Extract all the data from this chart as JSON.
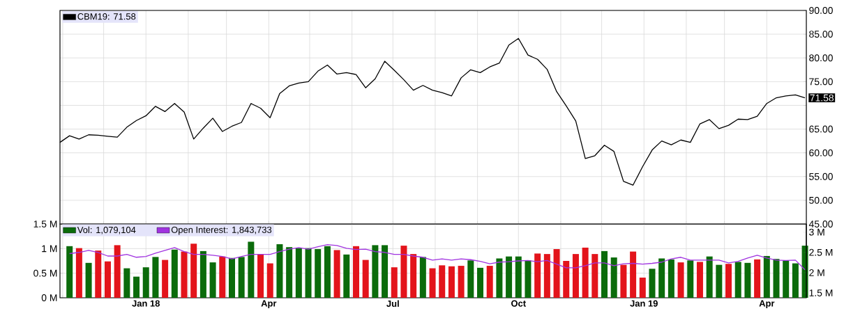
{
  "chart_data": [
    {
      "type": "line",
      "x": [
        "2017-10-30",
        "2017-11-06",
        "2017-11-13",
        "2017-11-20",
        "2017-11-27",
        "2017-12-04",
        "2017-12-11",
        "2017-12-18",
        "2017-12-25",
        "2018-01-01",
        "2018-01-08",
        "2018-01-15",
        "2018-01-22",
        "2018-01-29",
        "2018-02-05",
        "2018-02-12",
        "2018-02-19",
        "2018-02-26",
        "2018-03-05",
        "2018-03-12",
        "2018-03-19",
        "2018-03-26",
        "2018-04-02",
        "2018-04-09",
        "2018-04-16",
        "2018-04-23",
        "2018-04-30",
        "2018-05-07",
        "2018-05-14",
        "2018-05-21",
        "2018-05-28",
        "2018-06-04",
        "2018-06-11",
        "2018-06-18",
        "2018-06-25",
        "2018-07-02",
        "2018-07-09",
        "2018-07-16",
        "2018-07-23",
        "2018-07-30",
        "2018-08-06",
        "2018-08-13",
        "2018-08-20",
        "2018-08-27",
        "2018-09-03",
        "2018-09-10",
        "2018-09-17",
        "2018-09-24",
        "2018-10-01",
        "2018-10-08",
        "2018-10-15",
        "2018-10-22",
        "2018-10-29",
        "2018-11-05",
        "2018-11-12",
        "2018-11-19",
        "2018-11-26",
        "2018-12-03",
        "2018-12-10",
        "2018-12-17",
        "2018-12-24",
        "2018-12-31",
        "2019-01-07",
        "2019-01-14",
        "2019-01-21",
        "2019-01-28",
        "2019-02-04",
        "2019-02-11",
        "2019-02-18",
        "2019-02-25",
        "2019-03-04",
        "2019-03-11",
        "2019-03-18",
        "2019-03-25",
        "2019-04-01",
        "2019-04-08",
        "2019-04-15",
        "2019-04-22",
        "2019-04-29"
      ],
      "series": [
        {
          "name": "CBM19: 71.58",
          "color": "#000000",
          "values": [
            62.2,
            63.6,
            62.9,
            63.8,
            63.7,
            63.5,
            63.3,
            65.4,
            66.8,
            67.8,
            69.8,
            68.7,
            70.4,
            68.6,
            62.9,
            65.2,
            67.3,
            64.5,
            65.6,
            66.4,
            70.4,
            69.4,
            67.4,
            72.5,
            74.1,
            74.7,
            75.0,
            77.2,
            78.5,
            76.6,
            76.9,
            76.5,
            73.7,
            75.6,
            79.3,
            77.4,
            75.4,
            73.2,
            74.2,
            73.2,
            72.7,
            72.0,
            75.8,
            77.5,
            76.9,
            78.1,
            78.9,
            82.7,
            84.1,
            80.6,
            79.7,
            77.6,
            72.9,
            69.9,
            66.7,
            58.8,
            59.4,
            61.6,
            60.3,
            54.0,
            53.2,
            57.1,
            60.6,
            62.5,
            61.7,
            62.7,
            62.2,
            66.1,
            67.0,
            65.1,
            65.8,
            67.1,
            67.0,
            67.7,
            70.4,
            71.6,
            72.0,
            72.2,
            71.58
          ]
        }
      ],
      "xlim": [
        "2017-10-30",
        "2019-04-30"
      ],
      "xticks": [
        {
          "value": "2017-11-01",
          "label": null
        },
        {
          "value": "2017-12-01",
          "label": null
        },
        {
          "value": "2018-01-01",
          "label": null
        },
        {
          "value": "2018-02-01",
          "label": null
        },
        {
          "value": "2018-03-01",
          "label": null
        },
        {
          "value": "2018-04-01",
          "label": null
        },
        {
          "value": "2018-05-01",
          "label": null
        },
        {
          "value": "2018-06-01",
          "label": null
        },
        {
          "value": "2018-07-01",
          "label": null
        },
        {
          "value": "2018-08-01",
          "label": null
        },
        {
          "value": "2018-09-01",
          "label": null
        },
        {
          "value": "2018-10-01",
          "label": null
        },
        {
          "value": "2018-11-01",
          "label": null
        },
        {
          "value": "2018-12-01",
          "label": null
        },
        {
          "value": "2019-01-01",
          "label": null
        },
        {
          "value": "2019-02-01",
          "label": null
        },
        {
          "value": "2019-03-01",
          "label": null
        },
        {
          "value": "2019-04-01",
          "label": null
        }
      ],
      "ylim": [
        45,
        90
      ],
      "yticks": [
        {
          "value": 45,
          "label": "45.00"
        },
        {
          "value": 50,
          "label": "50.00"
        },
        {
          "value": 55,
          "label": "55.00"
        },
        {
          "value": 60,
          "label": "60.00"
        },
        {
          "value": 65,
          "label": "65.00"
        },
        {
          "value": 70,
          "label": null
        },
        {
          "value": 75,
          "label": "75.00"
        },
        {
          "value": 80,
          "label": "80.00"
        },
        {
          "value": 85,
          "label": "85.00"
        },
        {
          "value": 90,
          "label": "90.00"
        }
      ],
      "tick_labels": "y",
      "grid": true,
      "legend": "top left",
      "annotations": [
        {
          "text": "71.58",
          "x": "2019-04-29",
          "y": 71.58
        }
      ]
    },
    {
      "type": "bar",
      "x": [
        "2017-11-06",
        "2017-11-13",
        "2017-11-20",
        "2017-11-27",
        "2017-12-04",
        "2017-12-11",
        "2017-12-18",
        "2017-12-25",
        "2018-01-01",
        "2018-01-08",
        "2018-01-15",
        "2018-01-22",
        "2018-01-29",
        "2018-02-05",
        "2018-02-12",
        "2018-02-19",
        "2018-02-26",
        "2018-03-05",
        "2018-03-12",
        "2018-03-19",
        "2018-03-26",
        "2018-04-02",
        "2018-04-09",
        "2018-04-16",
        "2018-04-23",
        "2018-04-30",
        "2018-05-07",
        "2018-05-14",
        "2018-05-21",
        "2018-05-28",
        "2018-06-04",
        "2018-06-11",
        "2018-06-18",
        "2018-06-25",
        "2018-07-02",
        "2018-07-09",
        "2018-07-16",
        "2018-07-23",
        "2018-07-30",
        "2018-08-06",
        "2018-08-13",
        "2018-08-20",
        "2018-08-27",
        "2018-09-03",
        "2018-09-10",
        "2018-09-17",
        "2018-09-24",
        "2018-10-01",
        "2018-10-08",
        "2018-10-15",
        "2018-10-22",
        "2018-10-29",
        "2018-11-05",
        "2018-11-12",
        "2018-11-19",
        "2018-11-26",
        "2018-12-03",
        "2018-12-10",
        "2018-12-17",
        "2018-12-24",
        "2018-12-31",
        "2019-01-07",
        "2019-01-14",
        "2019-01-21",
        "2019-01-28",
        "2019-02-04",
        "2019-02-11",
        "2019-02-18",
        "2019-02-25",
        "2019-03-04",
        "2019-03-11",
        "2019-03-18",
        "2019-03-25",
        "2019-04-01",
        "2019-04-08",
        "2019-04-15",
        "2019-04-22",
        "2019-04-29"
      ],
      "series": [
        {
          "name": "Vol: 1,079,104",
          "type": "bar",
          "color": "#0b6b0b",
          "values": [
            1.05,
            1.01,
            0.71,
            0.96,
            0.74,
            1.07,
            0.6,
            0.43,
            0.62,
            0.83,
            0.77,
            0.98,
            0.94,
            1.1,
            0.95,
            0.72,
            0.84,
            0.81,
            0.83,
            1.14,
            0.89,
            0.7,
            1.09,
            1.03,
            1.01,
            1.01,
            0.99,
            1.05,
            0.97,
            0.88,
            1.05,
            0.77,
            1.07,
            1.07,
            0.62,
            1.06,
            0.89,
            0.83,
            0.6,
            0.66,
            0.64,
            0.65,
            0.76,
            0.61,
            0.65,
            0.8,
            0.84,
            0.84,
            0.76,
            0.9,
            0.89,
            0.99,
            0.75,
            0.89,
            1.02,
            0.89,
            0.95,
            0.82,
            0.67,
            0.94,
            0.41,
            0.59,
            0.8,
            0.78,
            0.72,
            0.76,
            0.73,
            0.84,
            0.67,
            0.69,
            0.73,
            0.71,
            0.78,
            0.85,
            0.79,
            0.76,
            0.7,
            1.06
          ],
          "colors": [
            "#0b6b0b",
            "#e3141b",
            "#0b6b0b",
            "#e3141b",
            "#e3141b",
            "#e3141b",
            "#0b6b0b",
            "#0b6b0b",
            "#0b6b0b",
            "#0b6b0b",
            "#e3141b",
            "#0b6b0b",
            "#e3141b",
            "#e3141b",
            "#0b6b0b",
            "#0b6b0b",
            "#e3141b",
            "#0b6b0b",
            "#0b6b0b",
            "#0b6b0b",
            "#e3141b",
            "#e3141b",
            "#0b6b0b",
            "#0b6b0b",
            "#0b6b0b",
            "#0b6b0b",
            "#0b6b0b",
            "#0b6b0b",
            "#e3141b",
            "#0b6b0b",
            "#e3141b",
            "#e3141b",
            "#0b6b0b",
            "#0b6b0b",
            "#e3141b",
            "#e3141b",
            "#e3141b",
            "#0b6b0b",
            "#e3141b",
            "#e3141b",
            "#e3141b",
            "#e3141b",
            "#0b6b0b",
            "#0b6b0b",
            "#e3141b",
            "#0b6b0b",
            "#0b6b0b",
            "#0b6b0b",
            "#0b6b0b",
            "#e3141b",
            "#e3141b",
            "#e3141b",
            "#e3141b",
            "#e3141b",
            "#e3141b",
            "#e3141b",
            "#0b6b0b",
            "#0b6b0b",
            "#e3141b",
            "#e3141b",
            "#e3141b",
            "#0b6b0b",
            "#0b6b0b",
            "#0b6b0b",
            "#e3141b",
            "#0b6b0b",
            "#e3141b",
            "#0b6b0b",
            "#0b6b0b",
            "#e3141b",
            "#0b6b0b",
            "#0b6b0b",
            "#e3141b",
            "#0b6b0b",
            "#0b6b0b",
            "#0b6b0b",
            "#0b6b0b",
            "#0b6b0b"
          ]
        },
        {
          "name": "Open Interest: 1,843,733",
          "type": "line",
          "axis": "y2",
          "color": "#a033e0",
          "values": [
            2.47,
            2.5,
            2.55,
            2.5,
            2.41,
            2.41,
            2.45,
            2.38,
            2.4,
            2.48,
            2.55,
            2.62,
            2.52,
            2.45,
            2.45,
            2.43,
            2.4,
            2.34,
            2.4,
            2.45,
            2.45,
            2.45,
            2.52,
            2.58,
            2.62,
            2.58,
            2.64,
            2.69,
            2.67,
            2.6,
            2.57,
            2.58,
            2.52,
            2.5,
            2.45,
            2.45,
            2.41,
            2.38,
            2.31,
            2.34,
            2.31,
            2.34,
            2.32,
            2.28,
            2.22,
            2.26,
            2.27,
            2.29,
            2.3,
            2.27,
            2.3,
            2.21,
            2.12,
            2.12,
            2.17,
            2.24,
            2.24,
            2.17,
            2.22,
            2.23,
            2.21,
            2.23,
            2.26,
            2.34,
            2.38,
            2.31,
            2.31,
            2.31,
            2.31,
            2.24,
            2.28,
            2.36,
            2.43,
            2.36,
            2.31,
            2.3,
            2.31,
            2.07
          ]
        }
      ],
      "xlim": [
        "2017-10-30",
        "2019-04-30"
      ],
      "xticks": [
        {
          "value": "2017-11-01",
          "label": null
        },
        {
          "value": "2017-12-01",
          "label": null
        },
        {
          "value": "2018-01-01",
          "label": "Jan 18"
        },
        {
          "value": "2018-02-01",
          "label": null
        },
        {
          "value": "2018-03-01",
          "label": null
        },
        {
          "value": "2018-04-01",
          "label": "Apr"
        },
        {
          "value": "2018-05-01",
          "label": null
        },
        {
          "value": "2018-06-01",
          "label": null
        },
        {
          "value": "2018-07-01",
          "label": "Jul"
        },
        {
          "value": "2018-08-01",
          "label": null
        },
        {
          "value": "2018-09-01",
          "label": null
        },
        {
          "value": "2018-10-01",
          "label": "Oct"
        },
        {
          "value": "2018-11-01",
          "label": null
        },
        {
          "value": "2018-12-01",
          "label": null
        },
        {
          "value": "2019-01-01",
          "label": "Jan 19"
        },
        {
          "value": "2019-02-01",
          "label": null
        },
        {
          "value": "2019-03-01",
          "label": null
        },
        {
          "value": "2019-04-01",
          "label": "Apr"
        }
      ],
      "ylim": [
        0,
        1.5
      ],
      "yticks": [
        {
          "value": 0,
          "label": "0 M"
        },
        {
          "value": 0.5,
          "label": "0.5 M"
        },
        {
          "value": 1,
          "label": "1 M"
        },
        {
          "value": 1.5,
          "label": "1.5 M"
        }
      ],
      "y2lim": [
        1.38,
        3.2
      ],
      "y2ticks": [
        {
          "value": 1.5,
          "label": "1.5 M"
        },
        {
          "value": 2,
          "label": "2 M"
        },
        {
          "value": 2.5,
          "label": "2.5 M"
        },
        {
          "value": 3,
          "label": "3 M"
        }
      ],
      "grid": true,
      "legend": "top left"
    }
  ]
}
